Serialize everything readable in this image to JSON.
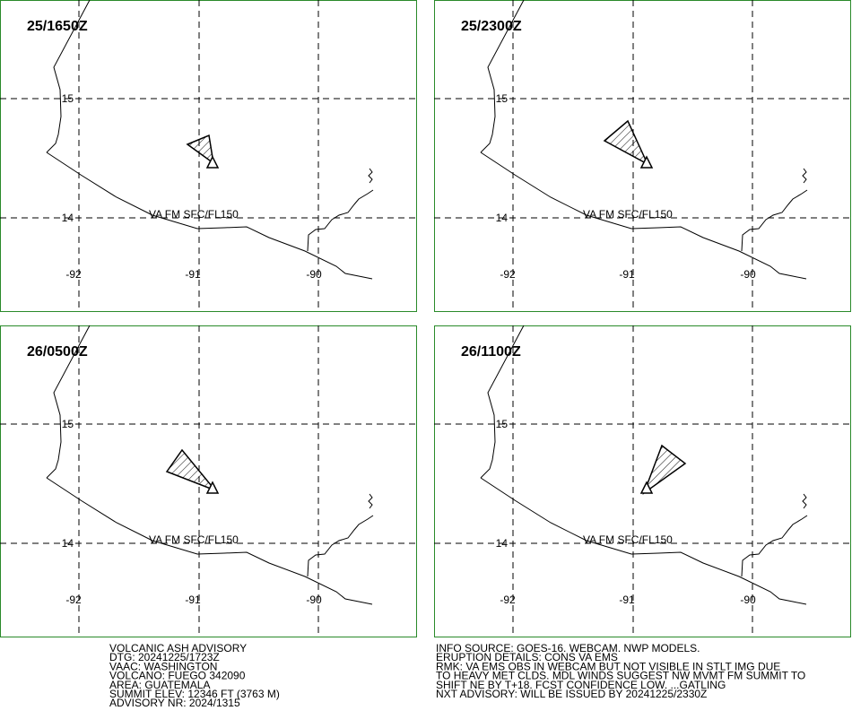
{
  "panels": [
    {
      "time": "25/1650Z",
      "lat_labels": [
        "15",
        "14"
      ],
      "lon_labels": [
        "-92",
        "-91",
        "-90"
      ],
      "layer": "VA FM SFC/FL150"
    },
    {
      "time": "25/2300Z",
      "lat_labels": [
        "15",
        "14"
      ],
      "lon_labels": [
        "-92",
        "-91",
        "-90"
      ],
      "layer": "VA FM SFC/FL150"
    },
    {
      "time": "26/0500Z",
      "lat_labels": [
        "15",
        "14"
      ],
      "lon_labels": [
        "-92",
        "-91",
        "-90"
      ],
      "layer": "VA FM SFC/FL150"
    },
    {
      "time": "26/1100Z",
      "lat_labels": [
        "15",
        "14"
      ],
      "lon_labels": [
        "-92",
        "-91",
        "-90"
      ],
      "layer": "VA FM SFC/FL150"
    }
  ],
  "footer_left": [
    "VOLCANIC ASH ADVISORY",
    "DTG: 20241225/1723Z",
    "VAAC: WASHINGTON",
    "VOLCANO: FUEGO 342090",
    "AREA: GUATEMALA",
    "SUMMIT ELEV: 12346 FT (3763 M)",
    "ADVISORY NR: 2024/1315"
  ],
  "footer_right": [
    "INFO SOURCE: GOES-16. WEBCAM. NWP MODELS.",
    "ERUPTION DETAILS: CONS VA EMS",
    "RMK: VA EMS OBS IN WEBCAM BUT NOT VISIBLE IN STLT IMG DUE",
    "TO HEAVY MET CLDS. MDL WINDS SUGGEST NW MVMT FM SUMMIT TO",
    "SHIFT NE BY T+18. FCST CONFIDENCE LOW. ...GATLING",
    "NXT ADVISORY: WILL BE ISSUED BY 20241225/2330Z"
  ]
}
